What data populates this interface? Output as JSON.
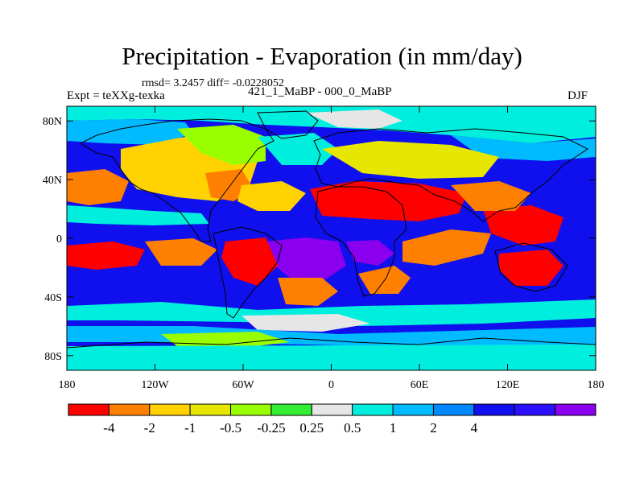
{
  "title": "Precipitation - Evaporation (in mm/day)",
  "subtitle": "rmsd= 3.2457 diff= -0.0228052",
  "left_label": "Expt = teXXg-texka",
  "center_label": "421_1_MaBP - 000_0_MaBP",
  "right_label": "DJF",
  "map": {
    "lat_ticks": [
      {
        "value": 80,
        "label": "80N"
      },
      {
        "value": 40,
        "label": "40N"
      },
      {
        "value": 0,
        "label": "0"
      },
      {
        "value": -40,
        "label": "40S"
      },
      {
        "value": -80,
        "label": "80S"
      }
    ],
    "lon_ticks": [
      {
        "value": -180,
        "label": "180"
      },
      {
        "value": -120,
        "label": "120W"
      },
      {
        "value": -60,
        "label": "60W"
      },
      {
        "value": 0,
        "label": "0"
      },
      {
        "value": 60,
        "label": "60E"
      },
      {
        "value": 120,
        "label": "120E"
      },
      {
        "value": 180,
        "label": "180"
      }
    ]
  },
  "colorbar": {
    "colors": [
      "#ff0000",
      "#ff8000",
      "#ffd200",
      "#e6e600",
      "#99ff00",
      "#33ee33",
      "#e6e6e6",
      "#00eedd",
      "#00bbff",
      "#0088ff",
      "#1010ee",
      "#2a10ff",
      "#8a00ee"
    ],
    "labels": [
      "-4",
      "-2",
      "-1",
      "-0.5",
      "-0.25",
      "0.25",
      "0.5",
      "1",
      "2",
      "4"
    ]
  }
}
